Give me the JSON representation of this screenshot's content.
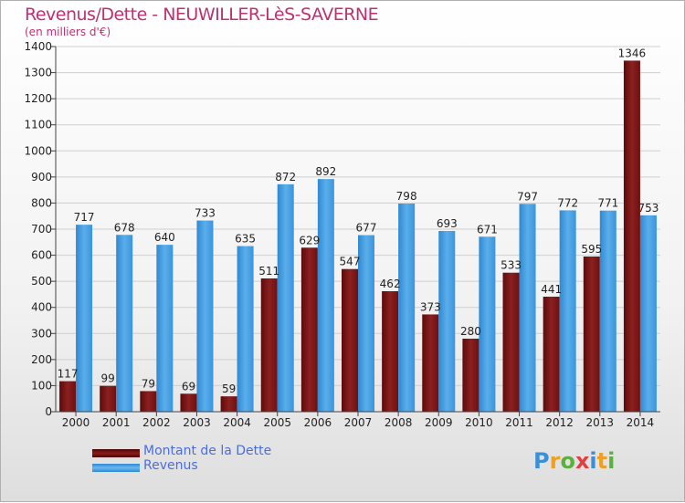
{
  "chart_data": {
    "type": "bar",
    "title": "Revenus/Dette - NEUWILLER-LèS-SAVERNE",
    "subtitle": "(en milliers d'€)",
    "xlabel": "",
    "ylabel": "",
    "categories": [
      "2000",
      "2001",
      "2002",
      "2003",
      "2004",
      "2005",
      "2006",
      "2007",
      "2008",
      "2009",
      "2010",
      "2011",
      "2012",
      "2013",
      "2014"
    ],
    "series": [
      {
        "name": "Montant de la Dette",
        "color": "#8b1a1a",
        "values": [
          117,
          99,
          79,
          69,
          59,
          511,
          629,
          547,
          462,
          373,
          280,
          533,
          441,
          595,
          1346
        ]
      },
      {
        "name": "Revenus",
        "color": "#3d9be3",
        "values": [
          717,
          678,
          640,
          733,
          635,
          872,
          892,
          677,
          798,
          693,
          671,
          797,
          772,
          771,
          753
        ]
      }
    ],
    "ylim": [
      0,
      1400
    ],
    "yticks": [
      0,
      100,
      200,
      300,
      400,
      500,
      600,
      700,
      800,
      900,
      1000,
      1100,
      1200,
      1300,
      1400
    ],
    "grid": true,
    "legend": "bottom-left"
  },
  "logo": {
    "letters": [
      {
        "char": "P",
        "color": "#3b8ed8"
      },
      {
        "char": "r",
        "color": "#f0a020"
      },
      {
        "char": "o",
        "color": "#5bb040"
      },
      {
        "char": "x",
        "color": "#e04040"
      },
      {
        "char": "i",
        "color": "#3b8ed8"
      },
      {
        "char": "t",
        "color": "#f0a020"
      },
      {
        "char": "i",
        "color": "#5bb040"
      }
    ]
  }
}
